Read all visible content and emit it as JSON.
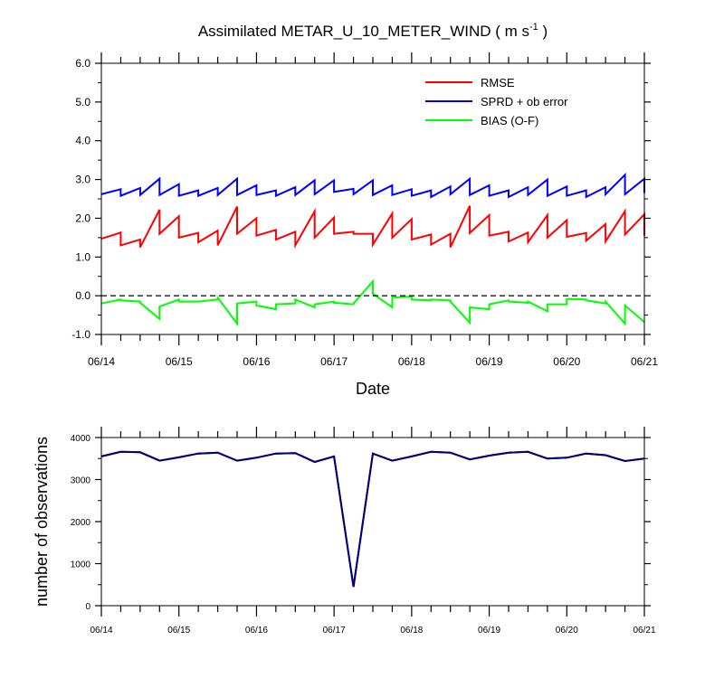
{
  "colors": {
    "rmse": "#ff0000",
    "sprd": "#0000ff",
    "bias": "#00ff00",
    "obs_used": "#000080",
    "obs_possible": "#000000",
    "zero_line": "#000000"
  },
  "chart_data": [
    {
      "type": "line",
      "title": "Assimilated METAR_U_10_METER_WIND",
      "title_unit_open": "( m s",
      "title_unit_exp": "-1",
      "title_unit_close": " )",
      "xlabel": "Date",
      "ylabel": "",
      "x_tick_labels": [
        "06/14",
        "06/15",
        "06/16",
        "06/17",
        "06/18",
        "06/19",
        "06/20",
        "06/21"
      ],
      "y_tick_labels": [
        "-1.0",
        "0.0",
        "1.0",
        "2.0",
        "3.0",
        "4.0",
        "5.0",
        "6.0"
      ],
      "ylim": [
        -1.0,
        6.0
      ],
      "xlim": [
        0,
        7
      ],
      "x_minor_per_day": 4,
      "legend_position": "top-right",
      "reference_line": 0.0,
      "series": [
        {
          "name": "RMSE",
          "color_key": "rmse",
          "points": [
            [
              0.0,
              1.47
            ],
            [
              0.25,
              1.63
            ],
            [
              0.25,
              1.3
            ],
            [
              0.5,
              1.45
            ],
            [
              0.5,
              1.25
            ],
            [
              0.75,
              2.22
            ],
            [
              0.75,
              1.6
            ],
            [
              1.0,
              2.05
            ],
            [
              1.0,
              1.5
            ],
            [
              1.25,
              1.62
            ],
            [
              1.25,
              1.38
            ],
            [
              1.5,
              1.68
            ],
            [
              1.5,
              1.3
            ],
            [
              1.75,
              2.3
            ],
            [
              1.75,
              1.6
            ],
            [
              2.0,
              2.0
            ],
            [
              2.0,
              1.55
            ],
            [
              2.25,
              1.7
            ],
            [
              2.25,
              1.45
            ],
            [
              2.5,
              1.65
            ],
            [
              2.5,
              1.3
            ],
            [
              2.75,
              2.18
            ],
            [
              2.75,
              1.5
            ],
            [
              3.0,
              2.02
            ],
            [
              3.0,
              1.6
            ],
            [
              3.25,
              1.65
            ],
            [
              3.25,
              1.6
            ],
            [
              3.5,
              1.6
            ],
            [
              3.5,
              1.32
            ],
            [
              3.75,
              2.12
            ],
            [
              3.75,
              1.5
            ],
            [
              4.0,
              1.98
            ],
            [
              4.0,
              1.45
            ],
            [
              4.25,
              1.58
            ],
            [
              4.25,
              1.32
            ],
            [
              4.5,
              1.6
            ],
            [
              4.5,
              1.25
            ],
            [
              4.75,
              2.32
            ],
            [
              4.75,
              1.62
            ],
            [
              5.0,
              2.08
            ],
            [
              5.0,
              1.55
            ],
            [
              5.25,
              1.65
            ],
            [
              5.25,
              1.4
            ],
            [
              5.5,
              1.63
            ],
            [
              5.5,
              1.38
            ],
            [
              5.75,
              2.08
            ],
            [
              5.75,
              1.5
            ],
            [
              6.0,
              1.95
            ],
            [
              6.0,
              1.52
            ],
            [
              6.25,
              1.62
            ],
            [
              6.25,
              1.42
            ],
            [
              6.5,
              1.85
            ],
            [
              6.5,
              1.4
            ],
            [
              6.75,
              2.18
            ],
            [
              6.75,
              1.58
            ],
            [
              7.0,
              2.1
            ],
            [
              7.0,
              1.55
            ]
          ]
        },
        {
          "name": "SPRD + ob error",
          "color_key": "sprd",
          "points": [
            [
              0.0,
              2.62
            ],
            [
              0.25,
              2.75
            ],
            [
              0.25,
              2.58
            ],
            [
              0.5,
              2.78
            ],
            [
              0.5,
              2.6
            ],
            [
              0.75,
              3.02
            ],
            [
              0.75,
              2.6
            ],
            [
              1.0,
              2.88
            ],
            [
              1.0,
              2.58
            ],
            [
              1.25,
              2.72
            ],
            [
              1.25,
              2.58
            ],
            [
              1.5,
              2.78
            ],
            [
              1.5,
              2.6
            ],
            [
              1.75,
              3.02
            ],
            [
              1.75,
              2.6
            ],
            [
              2.0,
              2.85
            ],
            [
              2.0,
              2.6
            ],
            [
              2.25,
              2.72
            ],
            [
              2.25,
              2.58
            ],
            [
              2.5,
              2.8
            ],
            [
              2.5,
              2.6
            ],
            [
              2.75,
              2.98
            ],
            [
              2.75,
              2.62
            ],
            [
              3.0,
              2.98
            ],
            [
              3.0,
              2.68
            ],
            [
              3.25,
              2.76
            ],
            [
              3.25,
              2.62
            ],
            [
              3.5,
              2.98
            ],
            [
              3.5,
              2.6
            ],
            [
              3.75,
              2.85
            ],
            [
              3.75,
              2.6
            ],
            [
              4.0,
              2.75
            ],
            [
              4.0,
              2.58
            ],
            [
              4.25,
              2.72
            ],
            [
              4.25,
              2.55
            ],
            [
              4.5,
              2.82
            ],
            [
              4.5,
              2.62
            ],
            [
              4.75,
              3.02
            ],
            [
              4.75,
              2.6
            ],
            [
              5.0,
              2.85
            ],
            [
              5.0,
              2.58
            ],
            [
              5.25,
              2.72
            ],
            [
              5.25,
              2.55
            ],
            [
              5.5,
              2.8
            ],
            [
              5.5,
              2.6
            ],
            [
              5.75,
              3.0
            ],
            [
              5.75,
              2.58
            ],
            [
              6.0,
              2.82
            ],
            [
              6.0,
              2.58
            ],
            [
              6.25,
              2.72
            ],
            [
              6.25,
              2.55
            ],
            [
              6.5,
              2.8
            ],
            [
              6.5,
              2.62
            ],
            [
              6.75,
              3.12
            ],
            [
              6.75,
              2.62
            ],
            [
              7.0,
              3.02
            ],
            [
              7.0,
              2.65
            ]
          ]
        },
        {
          "name": "BIAS (O-F)",
          "color_key": "bias",
          "points": [
            [
              0.0,
              -0.2
            ],
            [
              0.25,
              -0.1
            ],
            [
              0.25,
              -0.12
            ],
            [
              0.5,
              -0.15
            ],
            [
              0.5,
              -0.18
            ],
            [
              0.75,
              -0.6
            ],
            [
              0.75,
              -0.28
            ],
            [
              1.0,
              -0.1
            ],
            [
              1.0,
              -0.15
            ],
            [
              1.25,
              -0.15
            ],
            [
              1.25,
              -0.15
            ],
            [
              1.5,
              -0.1
            ],
            [
              1.5,
              -0.05
            ],
            [
              1.75,
              -0.72
            ],
            [
              1.75,
              -0.2
            ],
            [
              2.0,
              -0.15
            ],
            [
              2.0,
              -0.25
            ],
            [
              2.25,
              -0.35
            ],
            [
              2.25,
              -0.22
            ],
            [
              2.5,
              -0.2
            ],
            [
              2.5,
              -0.1
            ],
            [
              2.75,
              -0.3
            ],
            [
              2.75,
              -0.22
            ],
            [
              3.0,
              -0.15
            ],
            [
              3.0,
              -0.18
            ],
            [
              3.25,
              -0.22
            ],
            [
              3.25,
              -0.2
            ],
            [
              3.5,
              0.37
            ],
            [
              3.5,
              0.05
            ],
            [
              3.75,
              -0.3
            ],
            [
              3.75,
              -0.05
            ],
            [
              4.0,
              -0.02
            ],
            [
              4.0,
              -0.1
            ],
            [
              4.25,
              -0.12
            ],
            [
              4.25,
              -0.1
            ],
            [
              4.5,
              -0.12
            ],
            [
              4.5,
              -0.15
            ],
            [
              4.75,
              -0.7
            ],
            [
              4.75,
              -0.3
            ],
            [
              5.0,
              -0.35
            ],
            [
              5.0,
              -0.22
            ],
            [
              5.25,
              -0.12
            ],
            [
              5.25,
              -0.15
            ],
            [
              5.5,
              -0.18
            ],
            [
              5.5,
              -0.15
            ],
            [
              5.75,
              -0.4
            ],
            [
              5.75,
              -0.22
            ],
            [
              6.0,
              -0.22
            ],
            [
              6.0,
              -0.08
            ],
            [
              6.25,
              -0.1
            ],
            [
              6.25,
              -0.12
            ],
            [
              6.5,
              -0.2
            ],
            [
              6.5,
              -0.15
            ],
            [
              6.75,
              -0.72
            ],
            [
              6.75,
              -0.25
            ],
            [
              7.0,
              -0.68
            ]
          ]
        }
      ]
    },
    {
      "type": "line",
      "title": "",
      "xlabel": "",
      "ylabel": "number of observations",
      "x_tick_labels": [
        "06/14",
        "06/15",
        "06/16",
        "06/17",
        "06/18",
        "06/19",
        "06/20",
        "06/21"
      ],
      "y_tick_labels": [
        "0",
        "1000",
        "2000",
        "3000",
        "4000"
      ],
      "ylim": [
        0,
        4000
      ],
      "xlim": [
        0,
        7
      ],
      "x_minor_per_day": 4,
      "series": [
        {
          "color_key": "obs_possible",
          "points": [
            [
              0.0,
              3550
            ],
            [
              0.25,
              3660
            ],
            [
              0.5,
              3650
            ],
            [
              0.75,
              3450
            ],
            [
              1.0,
              3530
            ],
            [
              1.25,
              3620
            ],
            [
              1.5,
              3640
            ],
            [
              1.75,
              3450
            ],
            [
              2.0,
              3520
            ],
            [
              2.25,
              3620
            ],
            [
              2.5,
              3630
            ],
            [
              2.75,
              3420
            ],
            [
              3.0,
              3550
            ],
            [
              3.25,
              450
            ],
            [
              3.5,
              3620
            ],
            [
              3.75,
              3450
            ],
            [
              4.0,
              3550
            ],
            [
              4.25,
              3660
            ],
            [
              4.5,
              3640
            ],
            [
              4.75,
              3480
            ],
            [
              5.0,
              3570
            ],
            [
              5.25,
              3640
            ],
            [
              5.5,
              3660
            ],
            [
              5.75,
              3500
            ],
            [
              6.0,
              3520
            ],
            [
              6.25,
              3620
            ],
            [
              6.5,
              3580
            ],
            [
              6.75,
              3440
            ],
            [
              7.0,
              3500
            ]
          ]
        },
        {
          "color_key": "obs_used",
          "points": [
            [
              0.0,
              3550
            ],
            [
              0.25,
              3660
            ],
            [
              0.5,
              3650
            ],
            [
              0.75,
              3450
            ],
            [
              1.0,
              3530
            ],
            [
              1.25,
              3620
            ],
            [
              1.5,
              3640
            ],
            [
              1.75,
              3450
            ],
            [
              2.0,
              3520
            ],
            [
              2.25,
              3620
            ],
            [
              2.5,
              3630
            ],
            [
              2.75,
              3420
            ],
            [
              3.0,
              3550
            ],
            [
              3.25,
              450
            ],
            [
              3.5,
              3620
            ],
            [
              3.75,
              3450
            ],
            [
              4.0,
              3550
            ],
            [
              4.25,
              3660
            ],
            [
              4.5,
              3640
            ],
            [
              4.75,
              3480
            ],
            [
              5.0,
              3570
            ],
            [
              5.25,
              3640
            ],
            [
              5.5,
              3660
            ],
            [
              5.75,
              3500
            ],
            [
              6.0,
              3520
            ],
            [
              6.25,
              3620
            ],
            [
              6.5,
              3580
            ],
            [
              6.75,
              3440
            ],
            [
              7.0,
              3500
            ]
          ]
        }
      ]
    }
  ]
}
